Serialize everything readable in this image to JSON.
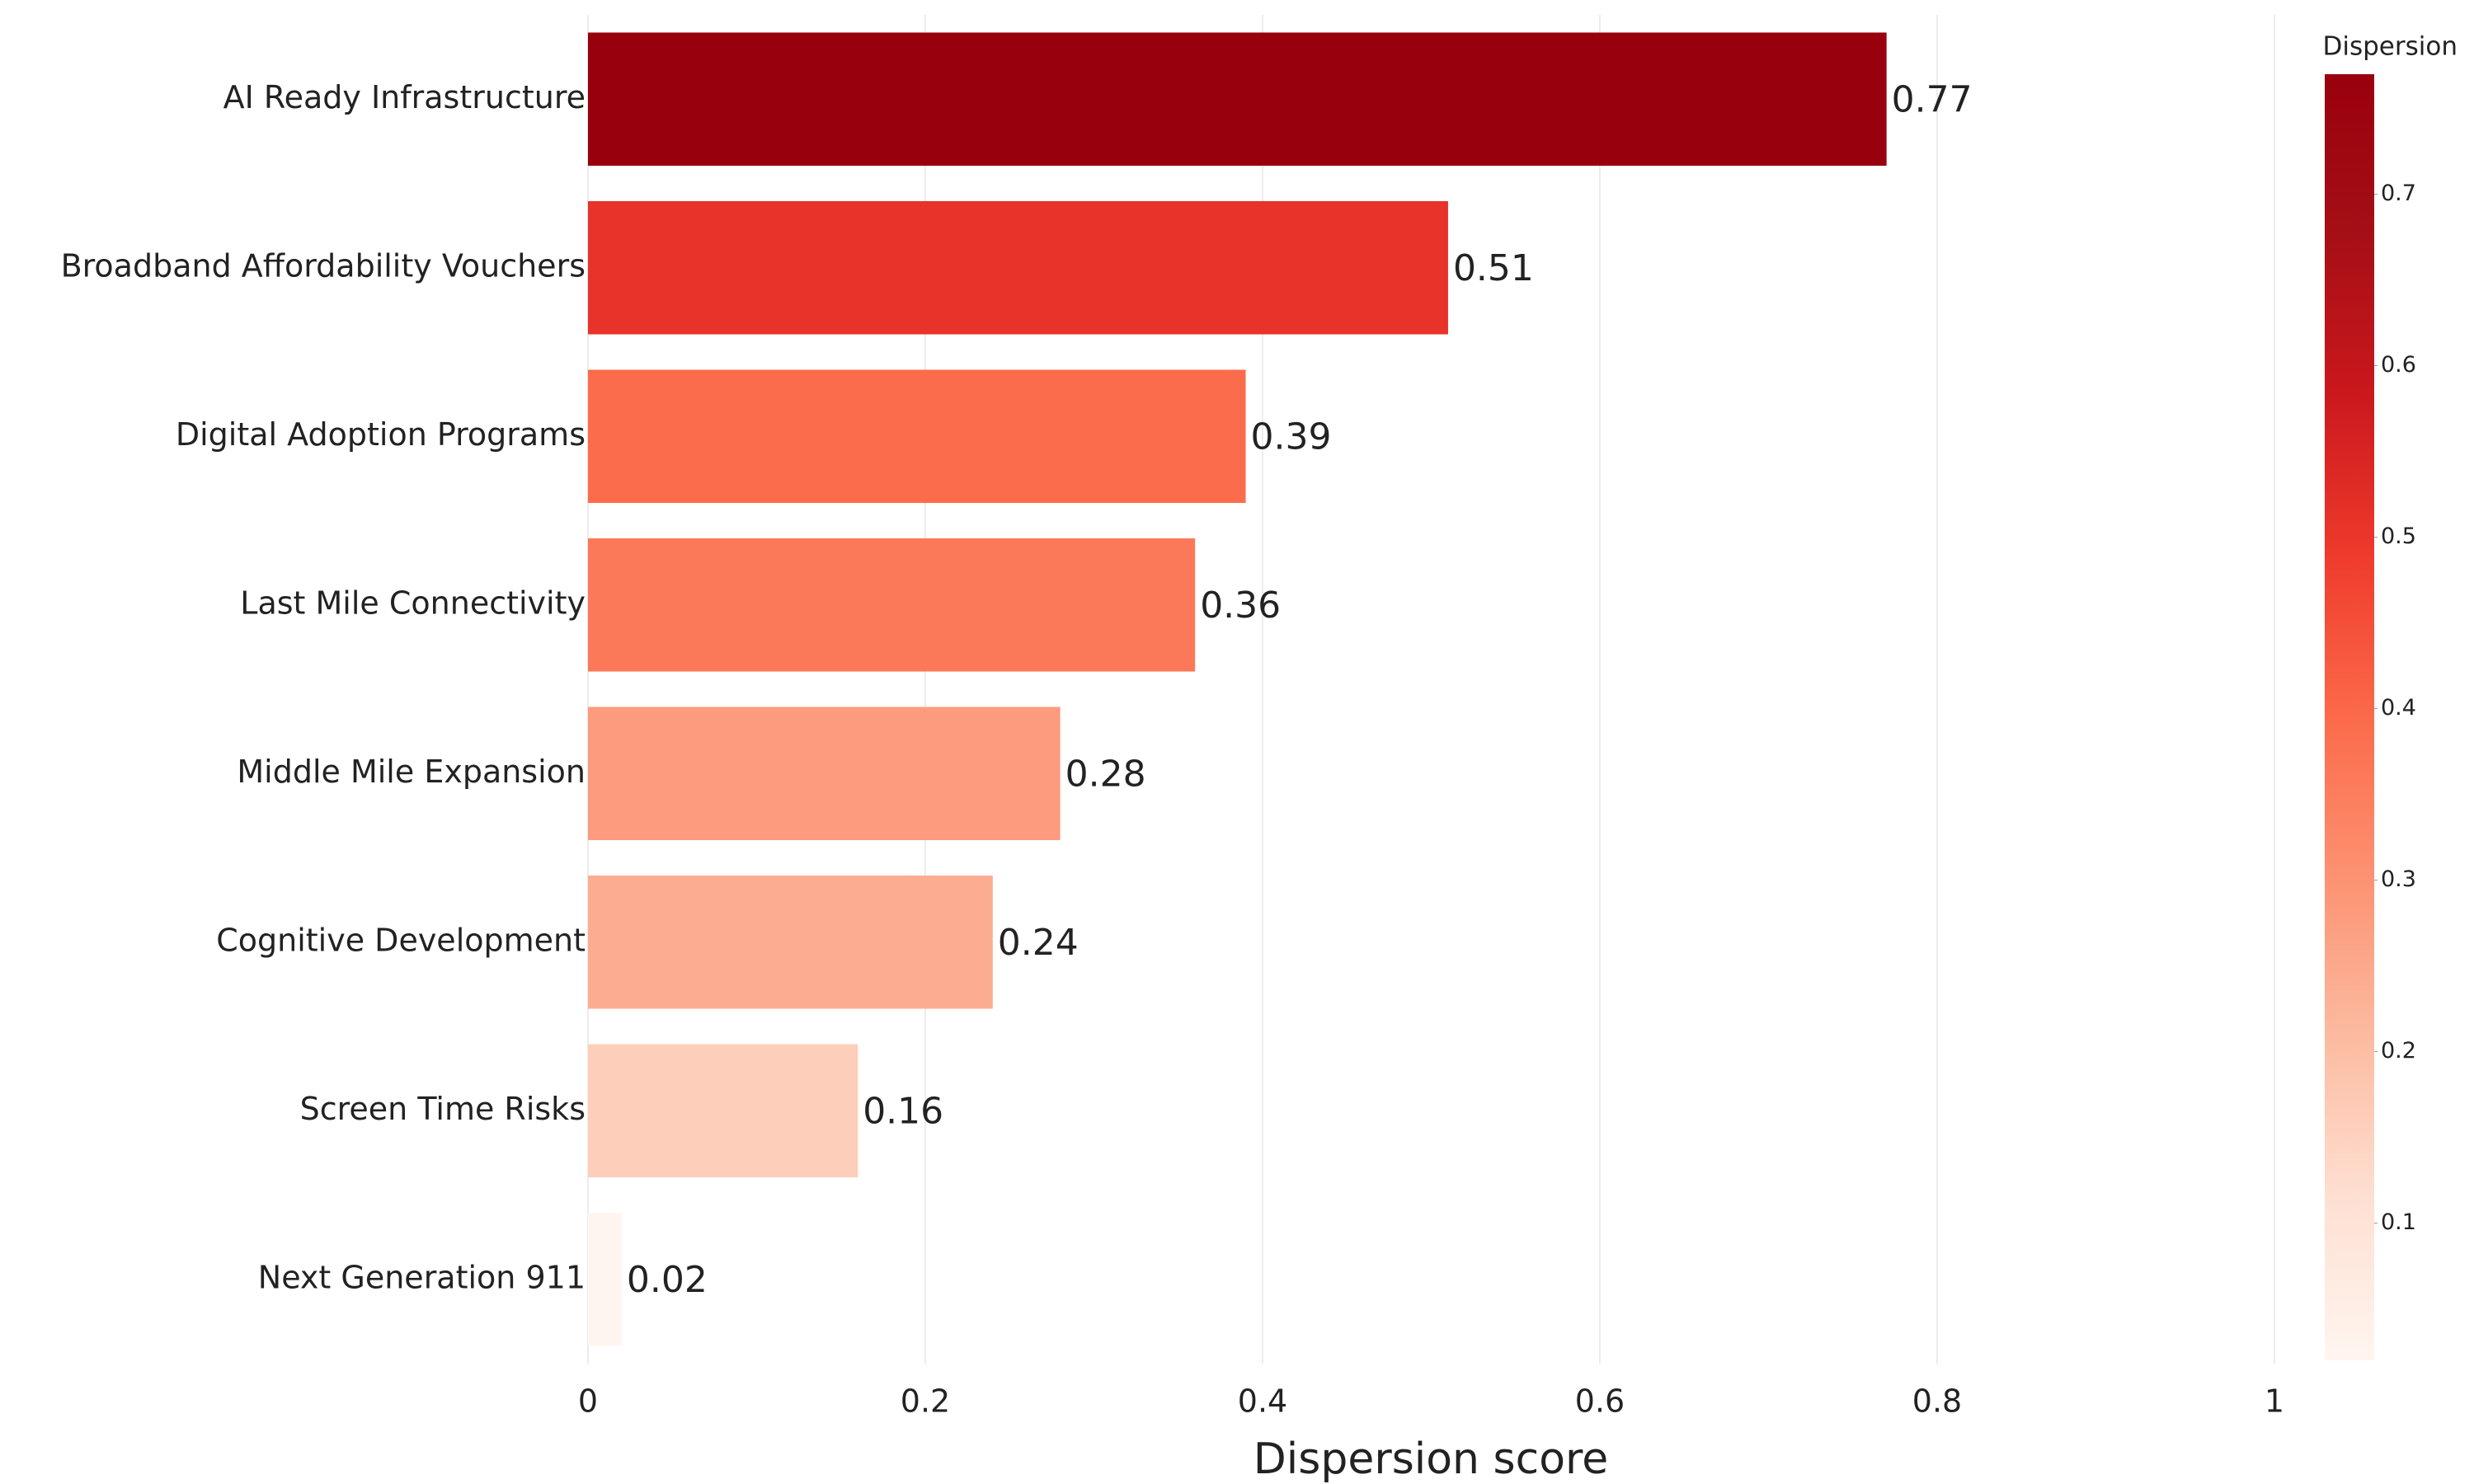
{
  "chart_data": {
    "type": "bar",
    "orientation": "horizontal",
    "categories": [
      "AI Ready Infrastructure",
      "Broadband Affordability Vouchers",
      "Digital Adoption Programs",
      "Last Mile Connectivity",
      "Middle Mile Expansion",
      "Cognitive Development",
      "Screen Time Risks",
      "Next Generation 911"
    ],
    "values": [
      0.77,
      0.51,
      0.39,
      0.36,
      0.28,
      0.24,
      0.16,
      0.02
    ],
    "xlabel": "Dispersion score",
    "xlim": [
      0,
      1
    ],
    "xticks": [
      0,
      0.2,
      0.4,
      0.6,
      0.8,
      1
    ],
    "grid": true,
    "colorbar_title": "Dispersion",
    "colorbar_ticks": [
      0.1,
      0.2,
      0.3,
      0.4,
      0.5,
      0.6,
      0.7
    ],
    "colorscale": [
      "#fff5f0",
      "#fee0d2",
      "#fcbba1",
      "#fc9272",
      "#fb6a4a",
      "#ef3b2c",
      "#cb181d",
      "#a50f15",
      "#99000d"
    ]
  }
}
